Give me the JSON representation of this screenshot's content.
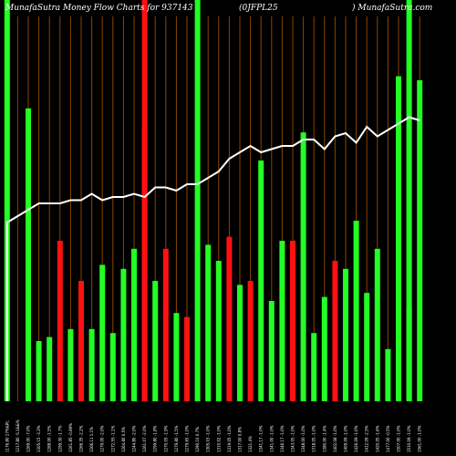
{
  "header": {
    "left": "MunafaSutra  Money Flow  Charts for 937143",
    "center": "(0JFPL25",
    "right": ") MunafaSutra.com"
  },
  "colors": {
    "background": "#000000",
    "up": "#22ff22",
    "down": "#ff1111",
    "vgrid": "#8b4500",
    "line": "#ffffff",
    "text": "#ffffff"
  },
  "chart_data": {
    "type": "bar",
    "title": "MunafaSutra  Money Flow  Charts for 937143",
    "ylim": [
      0,
      100
    ],
    "line_ylim": [
      0,
      100
    ],
    "grid": "vertical",
    "full_height_bars": [
      {
        "index": 0,
        "color": "up"
      },
      {
        "index": 13,
        "color": "down"
      },
      {
        "index": 18,
        "color": "up"
      },
      {
        "index": 38,
        "color": "up"
      }
    ],
    "categories": [
      "1176.80 17%&Pt;",
      "1217.80 -5.1&&%",
      "1269.00 -7.0%",
      "1305.15 -3.3%",
      "1288.00 -1.5%",
      "1299.30 -1.7%",
      "1261.85 -0.89%",
      "1266.35 -2.2%",
      "1266.11 1.1%",
      "1279.00 -2.0%",
      "1272.55 -1.1%",
      "1264.80 0.5%",
      "1244.80 -2.0%",
      "1261.07 -2.0%",
      "1299.80 -1.8%",
      "1270.05 -1.9%",
      "1279.80 -1.5%",
      "1279.65 -1.0%",
      "1290.10 0.7%",
      "1305.03 -1.0%",
      "1310.02 -1.0%",
      "1319.05 -1.0%",
      "1317.00 0.8%",
      "1321.4%",
      "1341.17 -1.0%",
      "1341.00 -1.0%",
      "1346.17 -1.0%",
      "1343.05 -1.0%",
      "1348.00 -1.0%",
      "1318.05 -1.0%",
      "1380.00 -1.4%",
      "1402.08 -1.0%",
      "1409.09 -1.0%",
      "1426.09 -1.0%",
      "1412.09 -2.5%",
      "1420.05 -1.6%",
      "1477.00 -0.5%",
      "1507.00 -1.0%",
      "1510.09 -1.0%",
      "1561.00 -1.0%"
    ],
    "series": [
      {
        "type": "bar",
        "values": [
          0,
          0,
          73,
          15,
          16,
          40,
          18,
          30,
          18,
          34,
          17,
          33,
          38,
          68,
          30,
          38,
          22,
          21,
          0,
          39,
          35,
          41,
          29,
          30,
          60,
          25,
          40,
          40,
          67,
          17,
          26,
          35,
          33,
          45,
          27,
          38,
          13,
          81,
          23,
          80
        ],
        "colors": [
          "up",
          "down",
          "up",
          "up",
          "up",
          "down",
          "up",
          "down",
          "up",
          "up",
          "up",
          "up",
          "up",
          "down",
          "up",
          "down",
          "up",
          "down",
          "up",
          "up",
          "up",
          "down",
          "up",
          "down",
          "up",
          "up",
          "up",
          "down",
          "up",
          "up",
          "up",
          "down",
          "up",
          "up",
          "up",
          "up",
          "up",
          "up",
          "up",
          "up"
        ]
      },
      {
        "type": "line",
        "values": [
          56,
          58,
          60,
          62,
          62,
          62,
          63,
          63,
          65,
          63,
          64,
          64,
          65,
          64,
          67,
          67,
          66,
          68,
          68,
          70,
          72,
          76,
          78,
          80,
          78,
          79,
          80,
          80,
          82,
          82,
          79,
          83,
          84,
          81,
          86,
          83,
          85,
          87,
          89,
          88
        ]
      }
    ]
  }
}
